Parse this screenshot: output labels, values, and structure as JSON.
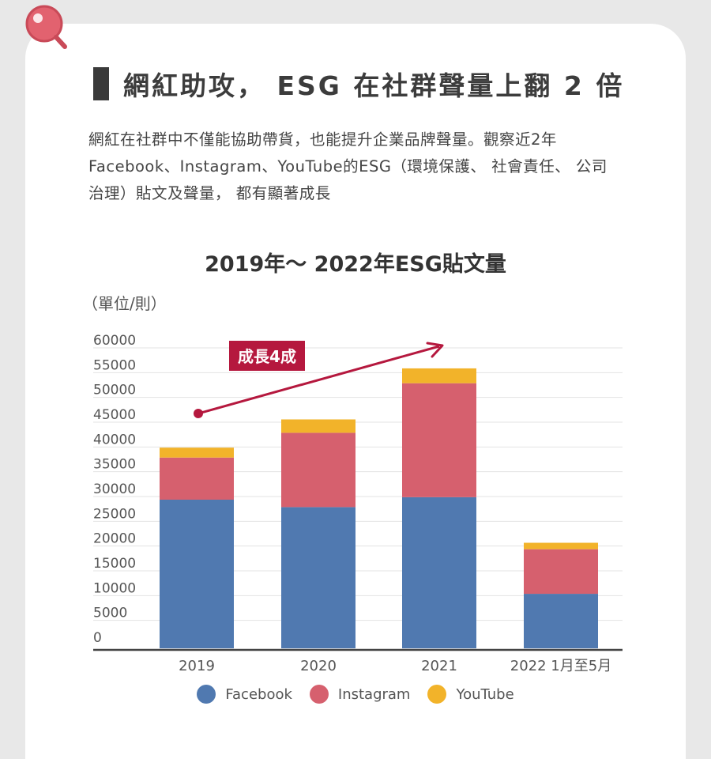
{
  "heading": {
    "title": "網紅助攻， ESG 在社群聲量上翻 2 倍"
  },
  "intro": {
    "line1": "網紅在社群中不僅能協助帶貨，也能提升企業品牌聲量。觀察近2年",
    "line2": "Facebook、Instagram、YouTube的ESG（環境保護、 社會責任、 公司",
    "line3": "治理）貼文及聲量， 都有顯著成長"
  },
  "chart_data": {
    "type": "bar",
    "stacked": true,
    "title": "2019年～ 2022年ESG貼文量",
    "unit_label": "（單位/則）",
    "categories": [
      "2019",
      "2020",
      "2021",
      "2022 1月至5月"
    ],
    "ylim": [
      0,
      60000
    ],
    "yticks": [
      "0",
      "5000",
      "10000",
      "15000",
      "20000",
      "25000",
      "30000",
      "35000",
      "40000",
      "45000",
      "50000",
      "55000",
      "60000"
    ],
    "grid": true,
    "legend": "bottom",
    "series": [
      {
        "name": "Facebook",
        "color": "#5079b0",
        "values": [
          30000,
          28500,
          30500,
          11000
        ]
      },
      {
        "name": "Instagram",
        "color": "#d6606e",
        "values": [
          8500,
          15000,
          23000,
          9000
        ]
      },
      {
        "name": "YouTube",
        "color": "#f2b32a",
        "values": [
          2000,
          2700,
          3000,
          1300
        ]
      }
    ],
    "annotation": {
      "label": "成長4成",
      "color": "#b5183e",
      "from_year": "2019",
      "to_year": "2021"
    }
  }
}
